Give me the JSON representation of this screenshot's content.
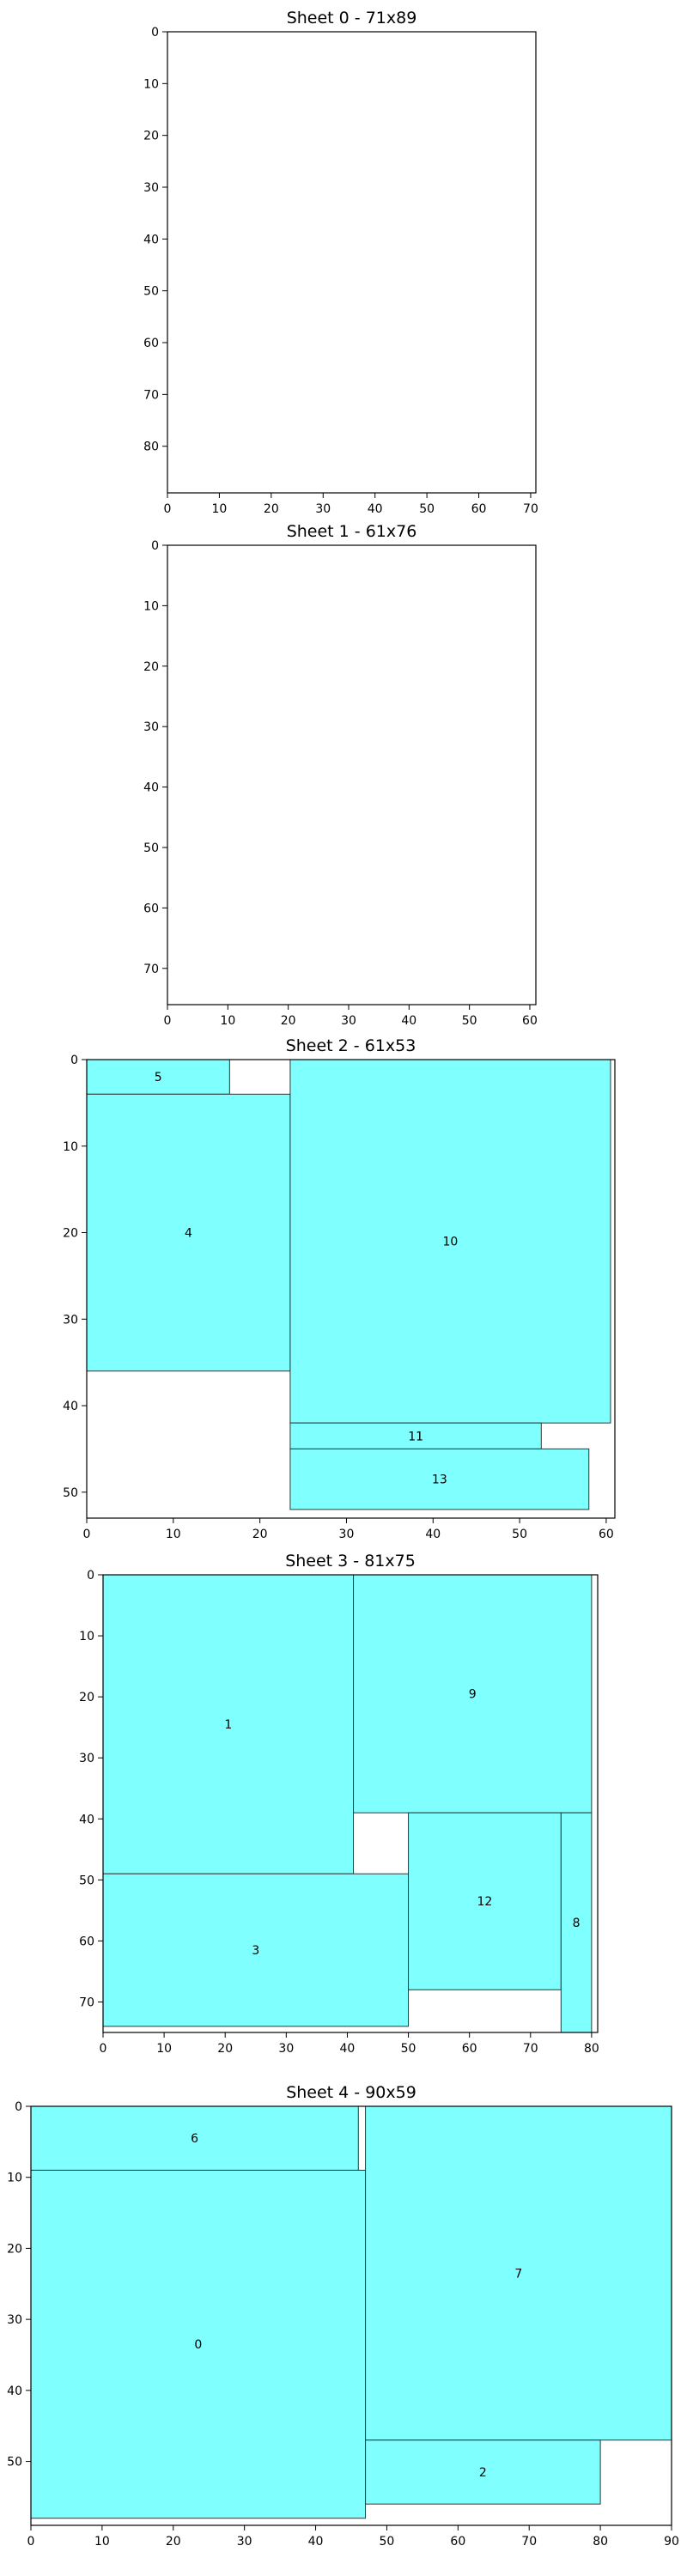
{
  "chart_data": [
    {
      "type": "rectangle-packing",
      "title": "Sheet 0 - 71x89",
      "width": 71,
      "height": 89,
      "xticks": [
        0,
        10,
        20,
        30,
        40,
        50,
        60,
        70
      ],
      "yticks": [
        0,
        10,
        20,
        30,
        40,
        50,
        60,
        70,
        80
      ],
      "rects": []
    },
    {
      "type": "rectangle-packing",
      "title": "Sheet 1 - 61x76",
      "width": 61,
      "height": 76,
      "xticks": [
        0,
        10,
        20,
        30,
        40,
        50,
        60
      ],
      "yticks": [
        0,
        10,
        20,
        30,
        40,
        50,
        60,
        70
      ],
      "rects": []
    },
    {
      "type": "rectangle-packing",
      "title": "Sheet 2 - 61x53",
      "width": 61,
      "height": 53,
      "xticks": [
        0,
        10,
        20,
        30,
        40,
        50,
        60
      ],
      "yticks": [
        0,
        10,
        20,
        30,
        40,
        50
      ],
      "rects": [
        {
          "id": "5",
          "x": 0,
          "y": 0,
          "w": 16.5,
          "h": 4
        },
        {
          "id": "4",
          "x": 0,
          "y": 4,
          "w": 23.5,
          "h": 32
        },
        {
          "id": "10",
          "x": 23.5,
          "y": 0,
          "w": 37,
          "h": 42
        },
        {
          "id": "11",
          "x": 23.5,
          "y": 42,
          "w": 29,
          "h": 3
        },
        {
          "id": "13",
          "x": 23.5,
          "y": 45,
          "w": 34.5,
          "h": 7
        }
      ]
    },
    {
      "type": "rectangle-packing",
      "title": "Sheet 3 - 81x75",
      "width": 81,
      "height": 75,
      "xticks": [
        0,
        10,
        20,
        30,
        40,
        50,
        60,
        70,
        80
      ],
      "yticks": [
        0,
        10,
        20,
        30,
        40,
        50,
        60,
        70
      ],
      "rects": [
        {
          "id": "1",
          "x": 0,
          "y": 0,
          "w": 41,
          "h": 49
        },
        {
          "id": "9",
          "x": 41,
          "y": 0,
          "w": 39,
          "h": 39
        },
        {
          "id": "3",
          "x": 0,
          "y": 49,
          "w": 50,
          "h": 25
        },
        {
          "id": "12",
          "x": 50,
          "y": 39,
          "w": 25,
          "h": 29
        },
        {
          "id": "8",
          "x": 75,
          "y": 39,
          "w": 5,
          "h": 36
        }
      ]
    },
    {
      "type": "rectangle-packing",
      "title": "Sheet 4 - 90x59",
      "width": 90,
      "height": 59,
      "xticks": [
        0,
        10,
        20,
        30,
        40,
        50,
        60,
        70,
        80,
        90
      ],
      "yticks": [
        0,
        10,
        20,
        30,
        40,
        50
      ],
      "rects": [
        {
          "id": "6",
          "x": 0,
          "y": 0,
          "w": 46,
          "h": 9
        },
        {
          "id": "0",
          "x": 0,
          "y": 9,
          "w": 47,
          "h": 49
        },
        {
          "id": "7",
          "x": 47,
          "y": 0,
          "w": 43,
          "h": 47
        },
        {
          "id": "2",
          "x": 47,
          "y": 47,
          "w": 33,
          "h": 9
        }
      ]
    }
  ],
  "colors": {
    "fill": "#80ffff",
    "stroke": "#333333",
    "axis": "#000000"
  }
}
